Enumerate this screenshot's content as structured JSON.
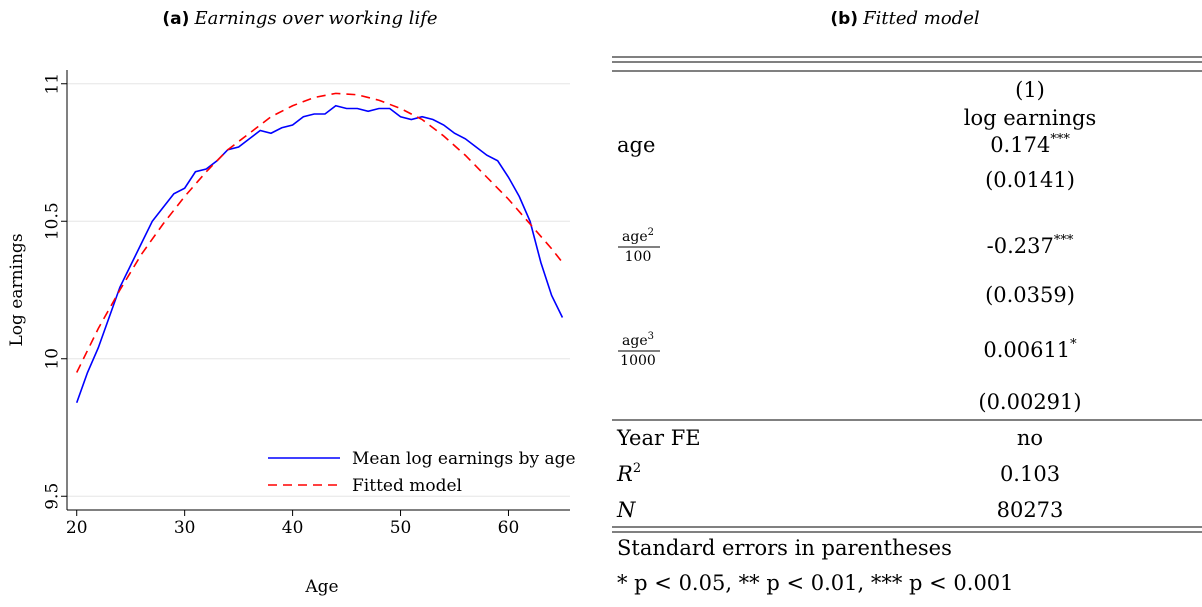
{
  "chart_data": {
    "type": "line",
    "label": "(a)",
    "title": "Earnings over working life",
    "xlabel": "Age",
    "ylabel": "Log earnings",
    "xlim": [
      19.1,
      65.7
    ],
    "ylim": [
      9.45,
      11.05
    ],
    "xticks": [
      20,
      30,
      40,
      50,
      60
    ],
    "yticks": [
      9.5,
      10,
      10.5,
      11
    ],
    "grid": true,
    "legend": "lower right",
    "series": [
      {
        "name": "Mean log earnings by age",
        "color": "#0000ff",
        "dash": false,
        "x": [
          20,
          21,
          22,
          23,
          24,
          25,
          26,
          27,
          28,
          29,
          30,
          31,
          32,
          33,
          34,
          35,
          36,
          37,
          38,
          39,
          40,
          41,
          42,
          43,
          44,
          45,
          46,
          47,
          48,
          49,
          50,
          51,
          52,
          53,
          54,
          55,
          56,
          57,
          58,
          59,
          60,
          61,
          62,
          63,
          64,
          65
        ],
        "values": [
          9.84,
          9.95,
          10.04,
          10.15,
          10.26,
          10.34,
          10.42,
          10.5,
          10.55,
          10.6,
          10.62,
          10.68,
          10.69,
          10.72,
          10.76,
          10.77,
          10.8,
          10.83,
          10.82,
          10.84,
          10.85,
          10.88,
          10.89,
          10.89,
          10.92,
          10.91,
          10.91,
          10.9,
          10.91,
          10.91,
          10.88,
          10.87,
          10.88,
          10.87,
          10.85,
          10.82,
          10.8,
          10.77,
          10.74,
          10.72,
          10.66,
          10.59,
          10.5,
          10.35,
          10.23,
          10.15
        ]
      },
      {
        "name": "Fitted model",
        "color": "#ff0000",
        "dash": true,
        "x": [
          20,
          22,
          24,
          26,
          28,
          30,
          32,
          34,
          36,
          38,
          40,
          42,
          44,
          46,
          48,
          50,
          52,
          54,
          56,
          58,
          60,
          62,
          64,
          65
        ],
        "values": [
          9.95,
          10.11,
          10.25,
          10.38,
          10.49,
          10.59,
          10.68,
          10.76,
          10.82,
          10.88,
          10.92,
          10.95,
          10.965,
          10.96,
          10.94,
          10.91,
          10.87,
          10.81,
          10.74,
          10.66,
          10.58,
          10.49,
          10.4,
          10.35
        ]
      }
    ]
  },
  "table_panel": {
    "label": "(b)",
    "title": "Fitted model",
    "header": [
      "(1)",
      "log earnings"
    ],
    "rows": [
      {
        "label": "age",
        "value": "0.174",
        "stars": "***"
      },
      {
        "value": "(0.0141)"
      },
      {
        "frac": {
          "num": "age",
          "sup": "2",
          "den": "100"
        },
        "value": "-0.237",
        "stars": "***"
      },
      {
        "value": "(0.0359)"
      },
      {
        "frac": {
          "num": "age",
          "sup": "3",
          "den": "1000"
        },
        "value": "0.00611",
        "stars": "*"
      },
      {
        "value": "(0.00291)"
      },
      {
        "label": "Year FE",
        "value": "no"
      },
      {
        "italic": "R",
        "sup": "2",
        "value": "0.103"
      },
      {
        "italic": "N",
        "value": "80273"
      }
    ],
    "notes": [
      "Standard errors in parentheses",
      "* p < 0.05, ** p < 0.01, *** p < 0.001"
    ]
  }
}
